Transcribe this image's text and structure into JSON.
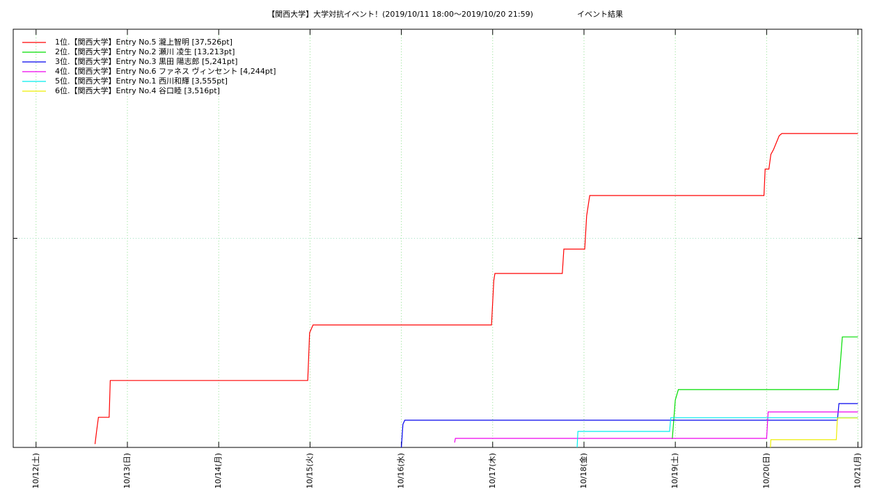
{
  "chart_data": {
    "type": "line",
    "title": "【関西大学】大学対抗イベント！(2019/10/11 18:00～2019/10/20 21:59)",
    "subtitle": "イベント結果",
    "xlim": [
      -6,
      217
    ],
    "ylim": [
      0,
      50000
    ],
    "xticks": [
      {
        "value": 0,
        "label": "10/12(土)"
      },
      {
        "value": 24,
        "label": "10/13(日)"
      },
      {
        "value": 48,
        "label": "10/14(月)"
      },
      {
        "value": 72,
        "label": "10/15(火)"
      },
      {
        "value": 96,
        "label": "10/16(水)"
      },
      {
        "value": 120,
        "label": "10/17(木)"
      },
      {
        "value": 144,
        "label": "10/18(金)"
      },
      {
        "value": 168,
        "label": "10/19(土)"
      },
      {
        "value": 192,
        "label": "10/20(日)"
      },
      {
        "value": 216,
        "label": "10/21(月)"
      }
    ],
    "yticks": [
      25000
    ],
    "grid": true,
    "legend": "top-left",
    "series": [
      {
        "name": "1位.【関西大学】Entry No.5 瀧上智明 [37,526pt]",
        "color": "#ff0000",
        "x": [
          15.5,
          15.9,
          16.4,
          19.2,
          19.5,
          71.4,
          71.9,
          72.8,
          119.7,
          120.3,
          120.6,
          138.3,
          138.7,
          144.2,
          144.7,
          145.5,
          191.3,
          191.6,
          192.6,
          193.1,
          193.8,
          195.3,
          196.0,
          216
        ],
        "values": [
          400,
          1900,
          3600,
          3600,
          8000,
          8000,
          13700,
          14640,
          14640,
          19970,
          20800,
          20800,
          23710,
          23710,
          27700,
          30120,
          30120,
          33280,
          33280,
          35030,
          35610,
          37270,
          37526,
          37526
        ]
      },
      {
        "name": "2位.【関西大学】Entry No.2 瀬川 凌生 [13,213pt]",
        "color": "#00dd00",
        "x": [
          167.2,
          168.0,
          168.8,
          210.8,
          211.4,
          211.9,
          216
        ],
        "values": [
          1000,
          5660,
          6910,
          6910,
          10230,
          13213,
          13213
        ]
      },
      {
        "name": "3位.【関西大学】Entry No.3 黒田 陽志郎 [5,241pt]",
        "color": "#0000ee",
        "x": [
          96.0,
          96.4,
          96.9,
          210.6,
          211.0,
          216
        ],
        "values": [
          0,
          2750,
          3250,
          3250,
          5241,
          5241
        ]
      },
      {
        "name": "4位.【関西大学】Entry No.6 ファネス ヴィンセント [4,244pt]",
        "color": "#ee00ee",
        "x": [
          110.0,
          110.2,
          192.0,
          192.4,
          216
        ],
        "values": [
          580,
          1080,
          1080,
          4244,
          4244
        ]
      },
      {
        "name": "5位.【関西大学】Entry No.1 西川和輝 [3,555pt]",
        "color": "#00eeee",
        "x": [
          142.2,
          142.4,
          166.5,
          166.8,
          216
        ],
        "values": [
          0,
          1910,
          1910,
          3555,
          3555
        ]
      },
      {
        "name": "6位.【関西大学】Entry No.4 谷口睦 [3,516pt]",
        "color": "#eeee00",
        "x": [
          193.0,
          193.1,
          210.3,
          210.6,
          216
        ],
        "values": [
          0,
          920,
          920,
          3516,
          3516
        ]
      }
    ]
  }
}
